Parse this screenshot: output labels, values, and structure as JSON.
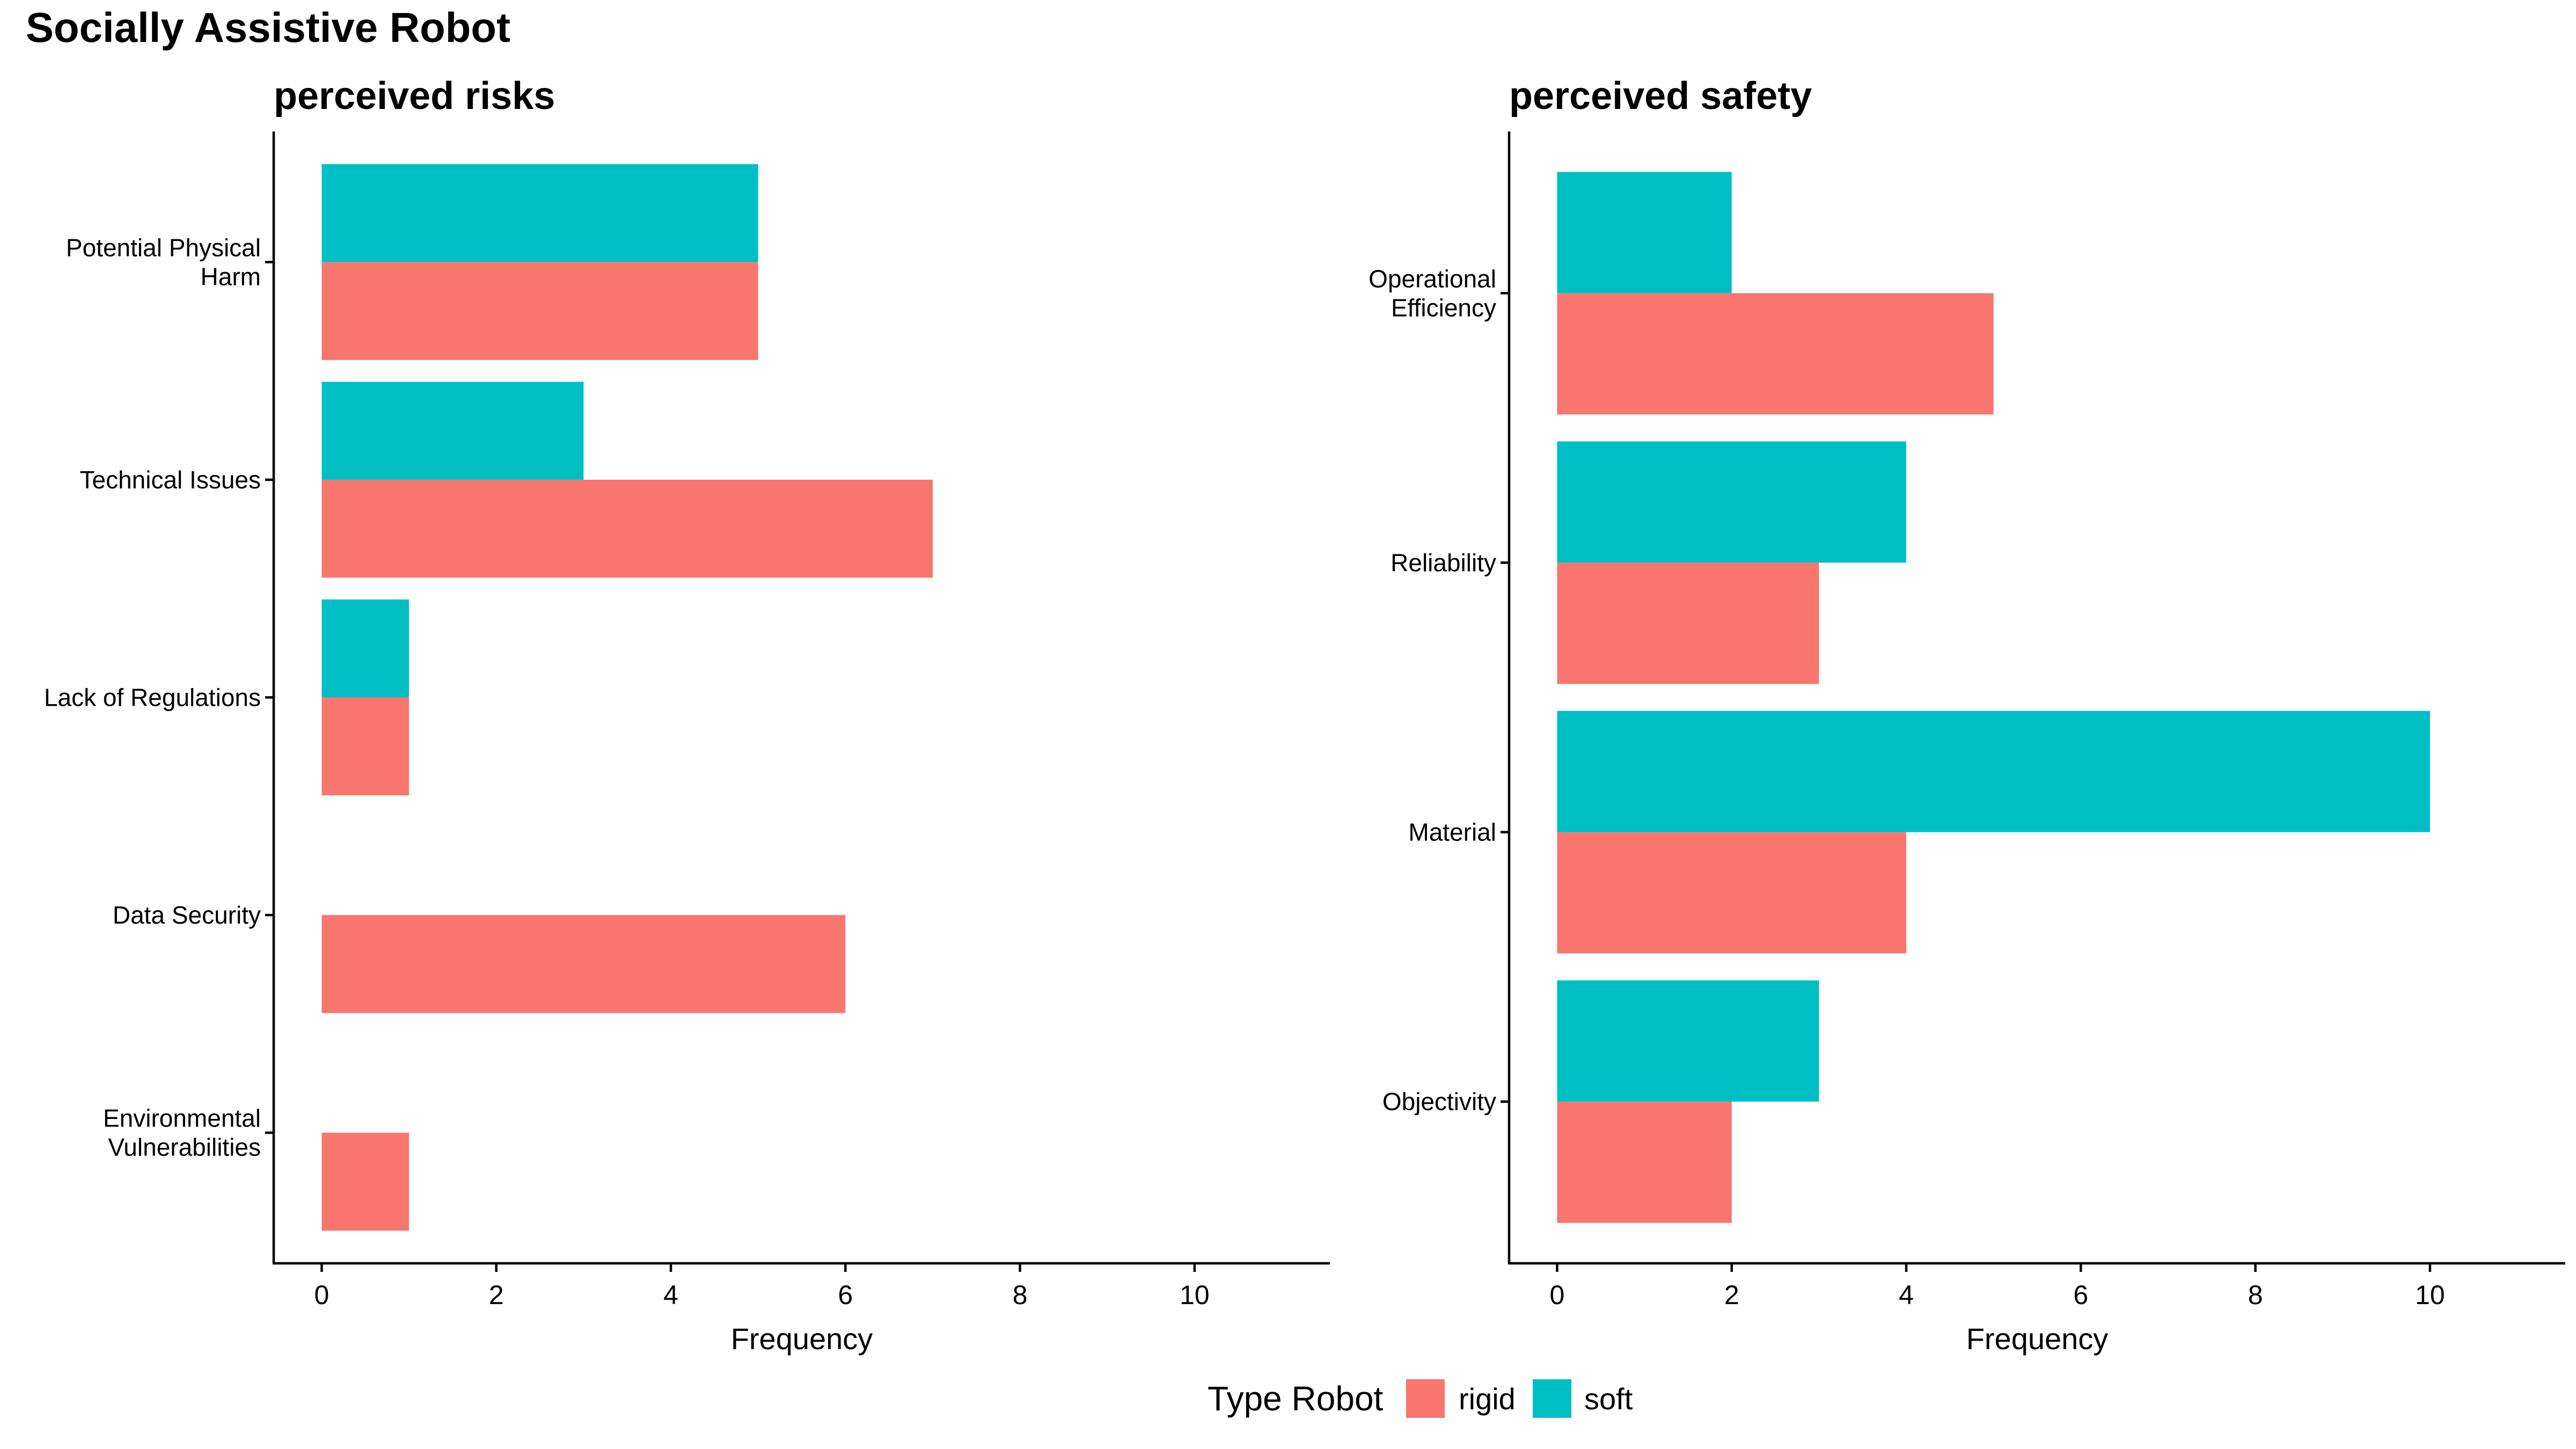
{
  "title": "Socially Assistive Robot",
  "legend": {
    "title": "Type Robot",
    "placement": "bottom",
    "items": [
      {
        "name": "rigid",
        "color": "#F8766D"
      },
      {
        "name": "soft",
        "color": "#00BFC4"
      }
    ]
  },
  "chart_data": [
    {
      "type": "bar",
      "orientation": "horizontal",
      "title": "perceived risks",
      "xlabel": "Frequency",
      "ylabel": "",
      "xlim": [
        0,
        11
      ],
      "xticks": [
        0,
        2,
        4,
        6,
        8,
        10
      ],
      "grid": false,
      "categories": [
        {
          "lines": [
            "Potential Physical",
            "Harm"
          ]
        },
        {
          "lines": [
            "Technical Issues"
          ]
        },
        {
          "lines": [
            "Lack of Regulations"
          ]
        },
        {
          "lines": [
            "Data Security"
          ]
        },
        {
          "lines": [
            "Environmental",
            "Vulnerabilities"
          ]
        }
      ],
      "series": [
        {
          "name": "rigid",
          "color": "#F8766D",
          "values": [
            5,
            7,
            1,
            6,
            1
          ]
        },
        {
          "name": "soft",
          "color": "#00BFC4",
          "values": [
            5,
            3,
            1,
            0,
            0
          ]
        }
      ]
    },
    {
      "type": "bar",
      "orientation": "horizontal",
      "title": "perceived safety",
      "xlabel": "Frequency",
      "ylabel": "",
      "xlim": [
        0,
        11
      ],
      "xticks": [
        0,
        2,
        4,
        6,
        8,
        10
      ],
      "grid": false,
      "categories": [
        {
          "lines": [
            "Operational",
            "Efficiency"
          ]
        },
        {
          "lines": [
            "Reliability"
          ]
        },
        {
          "lines": [
            "Material"
          ]
        },
        {
          "lines": [
            "Objectivity"
          ]
        }
      ],
      "series": [
        {
          "name": "rigid",
          "color": "#F8766D",
          "values": [
            5,
            3,
            4,
            2
          ]
        },
        {
          "name": "soft",
          "color": "#00BFC4",
          "values": [
            2,
            4,
            10,
            3
          ]
        }
      ]
    }
  ]
}
